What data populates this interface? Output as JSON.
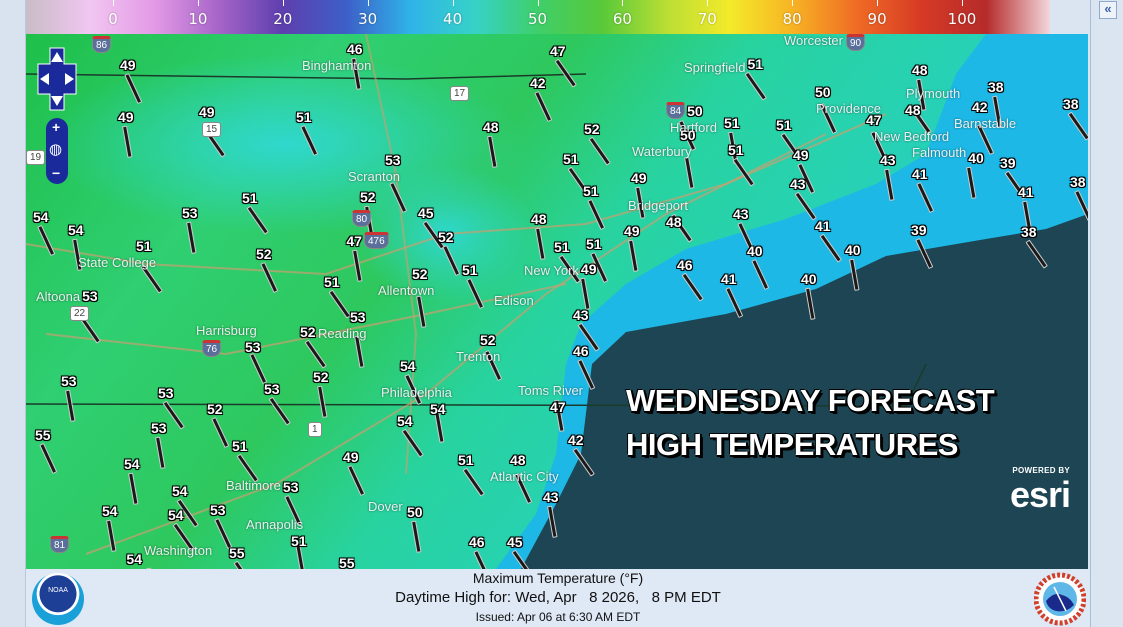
{
  "legend": {
    "ticks": [
      "0",
      "10",
      "20",
      "30",
      "40",
      "50",
      "60",
      "70",
      "80",
      "90",
      "100"
    ],
    "gradient": [
      "#c9bcc6",
      "#f1c6f1",
      "#e39ae6",
      "#a765c9",
      "#5e3fae",
      "#3d5fc8",
      "#2fb3e8",
      "#36d2c8",
      "#3fcf6a",
      "#58c93a",
      "#b9de34",
      "#f4ea2a",
      "#f7b224",
      "#ef6a25",
      "#d63a25",
      "#b52b2b",
      "#f2d7dc"
    ]
  },
  "panel": {
    "collapse_label": "«"
  },
  "map": {
    "colors": {
      "land": "#2ec65a",
      "coastal_water": "#1fb6e4",
      "ocean": "#1d4553"
    },
    "stations": [
      "49",
      "46",
      "47",
      "42",
      "49",
      "49",
      "51",
      "48",
      "52",
      "53",
      "52",
      "51",
      "51",
      "48",
      "45",
      "52",
      "53",
      "51",
      "54",
      "54",
      "51",
      "52",
      "47",
      "51",
      "51",
      "52",
      "51",
      "51",
      "49",
      "51",
      "50",
      "48",
      "48",
      "50",
      "51",
      "51",
      "47",
      "50",
      "51",
      "49",
      "43",
      "43",
      "41",
      "40",
      "39",
      "42",
      "38",
      "38",
      "38",
      "49",
      "48",
      "43",
      "49",
      "41",
      "39",
      "41",
      "38",
      "40",
      "40",
      "46",
      "41",
      "40",
      "43",
      "46",
      "47",
      "42",
      "48",
      "43",
      "45",
      "46",
      "50",
      "51",
      "54",
      "54",
      "54",
      "52",
      "53",
      "52",
      "53",
      "52",
      "53",
      "52",
      "53",
      "53",
      "55",
      "53",
      "51",
      "49",
      "54",
      "54",
      "53",
      "54",
      "54",
      "53",
      "51",
      "55",
      "55",
      "54",
      "53"
    ],
    "cities": [
      "Binghamton",
      "Scranton",
      "State College",
      "Altoona",
      "Allentown",
      "Edison",
      "New York",
      "Harrisburg",
      "Reading",
      "Trenton",
      "Philadelphia",
      "Toms River",
      "Baltimore",
      "Annapolis",
      "Washington",
      "Dover",
      "Atlantic City",
      "Springfield",
      "Worcester",
      "Hartford",
      "Waterbury",
      "Bridgeport",
      "Providence",
      "Plymouth",
      "Barnstable",
      "New Bedford",
      "Falmouth"
    ],
    "shields": [
      "86",
      "17",
      "15",
      "80",
      "476",
      "22",
      "76",
      "1",
      "81",
      "84",
      "90",
      "19"
    ],
    "overlay": {
      "line1": "WEDNESDAY FORECAST",
      "line2": "HIGH TEMPERATURES"
    },
    "esri": {
      "powered_by": "POWERED BY",
      "logo": "esri"
    },
    "controls": {
      "zoom_in": "+",
      "zoom_out": "−"
    }
  },
  "footer": {
    "title": "Maximum Temperature (°F)",
    "valid": "Daytime High for: Wed, Apr   8 2026,   8 PM EDT",
    "issued": "Issued: Apr 06 at 6:30 AM EDT",
    "noaa_logo": "NOAA",
    "nws_logo": "NATIONAL WEATHER SERVICE"
  }
}
